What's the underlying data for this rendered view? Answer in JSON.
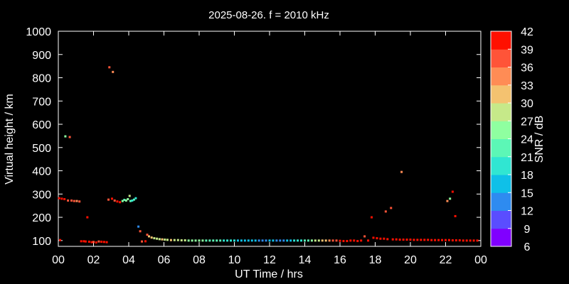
{
  "chart_data": {
    "type": "scatter",
    "title": "2025-08-26. f = 2010 kHz",
    "xlabel": "UT Time / hrs",
    "ylabel": "Virtual height / km",
    "xlim": [
      0,
      24
    ],
    "ylim": [
      75,
      1000
    ],
    "x_ticks": [
      "00",
      "02",
      "04",
      "06",
      "08",
      "10",
      "12",
      "14",
      "16",
      "18",
      "20",
      "22",
      "00"
    ],
    "y_ticks": [
      100,
      200,
      300,
      400,
      500,
      600,
      700,
      800,
      900,
      1000
    ],
    "grid": false,
    "colorbar": {
      "label": "SNR / dB",
      "ticks": [
        6,
        9,
        12,
        15,
        18,
        21,
        24,
        27,
        30,
        33,
        36,
        39,
        42
      ],
      "colors": [
        "#8000ff",
        "#5a4dff",
        "#2e8bf0",
        "#0fc0e8",
        "#30e6d2",
        "#5cf7b6",
        "#8fffa0",
        "#c6e989",
        "#f4c270",
        "#ff8c55",
        "#ff5438",
        "#ff1000"
      ]
    },
    "points": [
      {
        "t": 0.05,
        "h": 282,
        "snr": 40
      },
      {
        "t": 0.2,
        "h": 280,
        "snr": 40
      },
      {
        "t": 0.35,
        "h": 278,
        "snr": 39
      },
      {
        "t": 0.55,
        "h": 272,
        "snr": 38
      },
      {
        "t": 0.75,
        "h": 272,
        "snr": 37
      },
      {
        "t": 0.9,
        "h": 270,
        "snr": 36
      },
      {
        "t": 1.05,
        "h": 270,
        "snr": 34
      },
      {
        "t": 1.2,
        "h": 268,
        "snr": 38
      },
      {
        "t": 0.1,
        "h": 102,
        "snr": 40
      },
      {
        "t": 0.4,
        "h": 548,
        "snr": 24
      },
      {
        "t": 0.65,
        "h": 545,
        "snr": 38
      },
      {
        "t": 1.3,
        "h": 97,
        "snr": 40
      },
      {
        "t": 1.45,
        "h": 97,
        "snr": 40
      },
      {
        "t": 1.55,
        "h": 96,
        "snr": 39
      },
      {
        "t": 1.65,
        "h": 200,
        "snr": 40
      },
      {
        "t": 1.75,
        "h": 95,
        "snr": 40
      },
      {
        "t": 1.9,
        "h": 93,
        "snr": 40
      },
      {
        "t": 2.0,
        "h": 94,
        "snr": 38
      },
      {
        "t": 2.15,
        "h": 92,
        "snr": 40
      },
      {
        "t": 2.3,
        "h": 96,
        "snr": 37
      },
      {
        "t": 2.45,
        "h": 95,
        "snr": 40
      },
      {
        "t": 2.6,
        "h": 94,
        "snr": 40
      },
      {
        "t": 2.75,
        "h": 93,
        "snr": 40
      },
      {
        "t": 2.9,
        "h": 845,
        "snr": 36
      },
      {
        "t": 3.1,
        "h": 825,
        "snr": 34
      },
      {
        "t": 2.85,
        "h": 276,
        "snr": 37
      },
      {
        "t": 3.05,
        "h": 280,
        "snr": 40
      },
      {
        "t": 3.2,
        "h": 272,
        "snr": 38
      },
      {
        "t": 3.35,
        "h": 268,
        "snr": 40
      },
      {
        "t": 3.5,
        "h": 265,
        "snr": 39
      },
      {
        "t": 3.65,
        "h": 270,
        "snr": 25
      },
      {
        "t": 3.75,
        "h": 275,
        "snr": 22
      },
      {
        "t": 3.85,
        "h": 272,
        "snr": 24
      },
      {
        "t": 3.95,
        "h": 278,
        "snr": 26
      },
      {
        "t": 4.05,
        "h": 292,
        "snr": 29
      },
      {
        "t": 4.1,
        "h": 270,
        "snr": 22
      },
      {
        "t": 4.2,
        "h": 272,
        "snr": 20
      },
      {
        "t": 4.3,
        "h": 276,
        "snr": 21
      },
      {
        "t": 4.4,
        "h": 282,
        "snr": 19
      },
      {
        "t": 4.55,
        "h": 160,
        "snr": 14
      },
      {
        "t": 4.65,
        "h": 140,
        "snr": 37
      },
      {
        "t": 4.75,
        "h": 96,
        "snr": 38
      },
      {
        "t": 4.95,
        "h": 97,
        "snr": 40
      },
      {
        "t": 5.05,
        "h": 125,
        "snr": 38
      },
      {
        "t": 5.15,
        "h": 118,
        "snr": 30
      },
      {
        "t": 5.3,
        "h": 113,
        "snr": 30
      },
      {
        "t": 5.45,
        "h": 110,
        "snr": 27
      },
      {
        "t": 5.6,
        "h": 108,
        "snr": 27
      },
      {
        "t": 5.75,
        "h": 106,
        "snr": 28
      },
      {
        "t": 5.9,
        "h": 105,
        "snr": 30
      },
      {
        "t": 6.05,
        "h": 104,
        "snr": 29
      },
      {
        "t": 6.2,
        "h": 103,
        "snr": 28
      },
      {
        "t": 6.4,
        "h": 102,
        "snr": 30
      },
      {
        "t": 6.6,
        "h": 102,
        "snr": 29
      },
      {
        "t": 6.8,
        "h": 102,
        "snr": 28
      },
      {
        "t": 7.0,
        "h": 101,
        "snr": 27
      },
      {
        "t": 7.2,
        "h": 101,
        "snr": 27
      },
      {
        "t": 7.4,
        "h": 100,
        "snr": 26
      },
      {
        "t": 7.6,
        "h": 100,
        "snr": 25
      },
      {
        "t": 7.8,
        "h": 100,
        "snr": 25
      },
      {
        "t": 8.0,
        "h": 100,
        "snr": 24
      },
      {
        "t": 8.2,
        "h": 100,
        "snr": 24
      },
      {
        "t": 8.4,
        "h": 100,
        "snr": 23
      },
      {
        "t": 8.6,
        "h": 100,
        "snr": 23
      },
      {
        "t": 8.8,
        "h": 100,
        "snr": 22
      },
      {
        "t": 9.0,
        "h": 100,
        "snr": 21
      },
      {
        "t": 9.2,
        "h": 100,
        "snr": 21
      },
      {
        "t": 9.4,
        "h": 100,
        "snr": 20
      },
      {
        "t": 9.6,
        "h": 100,
        "snr": 20
      },
      {
        "t": 9.8,
        "h": 100,
        "snr": 19
      },
      {
        "t": 10.0,
        "h": 100,
        "snr": 18
      },
      {
        "t": 10.2,
        "h": 100,
        "snr": 17
      },
      {
        "t": 10.4,
        "h": 100,
        "snr": 16
      },
      {
        "t": 10.6,
        "h": 100,
        "snr": 15
      },
      {
        "t": 10.8,
        "h": 100,
        "snr": 16
      },
      {
        "t": 11.0,
        "h": 100,
        "snr": 17
      },
      {
        "t": 11.2,
        "h": 100,
        "snr": 15
      },
      {
        "t": 11.4,
        "h": 100,
        "snr": 14
      },
      {
        "t": 11.6,
        "h": 100,
        "snr": 13
      },
      {
        "t": 11.8,
        "h": 100,
        "snr": 14
      },
      {
        "t": 12.0,
        "h": 100,
        "snr": 15
      },
      {
        "t": 12.2,
        "h": 100,
        "snr": 16
      },
      {
        "t": 12.4,
        "h": 100,
        "snr": 14
      },
      {
        "t": 12.6,
        "h": 100,
        "snr": 13
      },
      {
        "t": 12.8,
        "h": 100,
        "snr": 14
      },
      {
        "t": 13.0,
        "h": 100,
        "snr": 15
      },
      {
        "t": 13.2,
        "h": 100,
        "snr": 17
      },
      {
        "t": 13.4,
        "h": 100,
        "snr": 19
      },
      {
        "t": 13.6,
        "h": 100,
        "snr": 18
      },
      {
        "t": 13.8,
        "h": 100,
        "snr": 20
      },
      {
        "t": 14.0,
        "h": 100,
        "snr": 22
      },
      {
        "t": 14.2,
        "h": 100,
        "snr": 23
      },
      {
        "t": 14.4,
        "h": 100,
        "snr": 25
      },
      {
        "t": 14.6,
        "h": 100,
        "snr": 27
      },
      {
        "t": 14.8,
        "h": 100,
        "snr": 28
      },
      {
        "t": 15.0,
        "h": 100,
        "snr": 30
      },
      {
        "t": 15.2,
        "h": 100,
        "snr": 32
      },
      {
        "t": 15.4,
        "h": 100,
        "snr": 34
      },
      {
        "t": 15.6,
        "h": 100,
        "snr": 36
      },
      {
        "t": 15.8,
        "h": 100,
        "snr": 38
      },
      {
        "t": 16.0,
        "h": 99,
        "snr": 40
      },
      {
        "t": 16.2,
        "h": 98,
        "snr": 41
      },
      {
        "t": 16.4,
        "h": 98,
        "snr": 40
      },
      {
        "t": 16.6,
        "h": 100,
        "snr": 39
      },
      {
        "t": 16.8,
        "h": 100,
        "snr": 40
      },
      {
        "t": 17.0,
        "h": 98,
        "snr": 41
      },
      {
        "t": 17.2,
        "h": 100,
        "snr": 40
      },
      {
        "t": 17.4,
        "h": 118,
        "snr": 37
      },
      {
        "t": 17.6,
        "h": 100,
        "snr": 40
      },
      {
        "t": 17.8,
        "h": 200,
        "snr": 40
      },
      {
        "t": 17.9,
        "h": 112,
        "snr": 40
      },
      {
        "t": 18.1,
        "h": 110,
        "snr": 40
      },
      {
        "t": 18.3,
        "h": 108,
        "snr": 41
      },
      {
        "t": 18.5,
        "h": 108,
        "snr": 40
      },
      {
        "t": 18.6,
        "h": 225,
        "snr": 38
      },
      {
        "t": 18.7,
        "h": 106,
        "snr": 40
      },
      {
        "t": 18.9,
        "h": 240,
        "snr": 38
      },
      {
        "t": 19.0,
        "h": 105,
        "snr": 41
      },
      {
        "t": 19.2,
        "h": 105,
        "snr": 40
      },
      {
        "t": 19.4,
        "h": 104,
        "snr": 40
      },
      {
        "t": 19.5,
        "h": 395,
        "snr": 33
      },
      {
        "t": 19.6,
        "h": 104,
        "snr": 41
      },
      {
        "t": 19.8,
        "h": 104,
        "snr": 40
      },
      {
        "t": 20.0,
        "h": 104,
        "snr": 40
      },
      {
        "t": 20.2,
        "h": 103,
        "snr": 41
      },
      {
        "t": 20.4,
        "h": 103,
        "snr": 40
      },
      {
        "t": 20.6,
        "h": 103,
        "snr": 39
      },
      {
        "t": 20.8,
        "h": 103,
        "snr": 40
      },
      {
        "t": 21.0,
        "h": 103,
        "snr": 41
      },
      {
        "t": 21.2,
        "h": 102,
        "snr": 40
      },
      {
        "t": 21.4,
        "h": 102,
        "snr": 40
      },
      {
        "t": 21.6,
        "h": 102,
        "snr": 41
      },
      {
        "t": 21.8,
        "h": 102,
        "snr": 40
      },
      {
        "t": 22.0,
        "h": 102,
        "snr": 41
      },
      {
        "t": 22.1,
        "h": 270,
        "snr": 34
      },
      {
        "t": 22.25,
        "h": 280,
        "snr": 25
      },
      {
        "t": 22.4,
        "h": 310,
        "snr": 40
      },
      {
        "t": 22.55,
        "h": 205,
        "snr": 40
      },
      {
        "t": 22.2,
        "h": 102,
        "snr": 40
      },
      {
        "t": 22.4,
        "h": 101,
        "snr": 41
      },
      {
        "t": 22.6,
        "h": 101,
        "snr": 40
      },
      {
        "t": 22.8,
        "h": 101,
        "snr": 41
      },
      {
        "t": 23.0,
        "h": 100,
        "snr": 40
      },
      {
        "t": 23.2,
        "h": 100,
        "snr": 40
      },
      {
        "t": 23.4,
        "h": 100,
        "snr": 41
      },
      {
        "t": 23.6,
        "h": 100,
        "snr": 40
      },
      {
        "t": 23.8,
        "h": 100,
        "snr": 40
      }
    ]
  }
}
